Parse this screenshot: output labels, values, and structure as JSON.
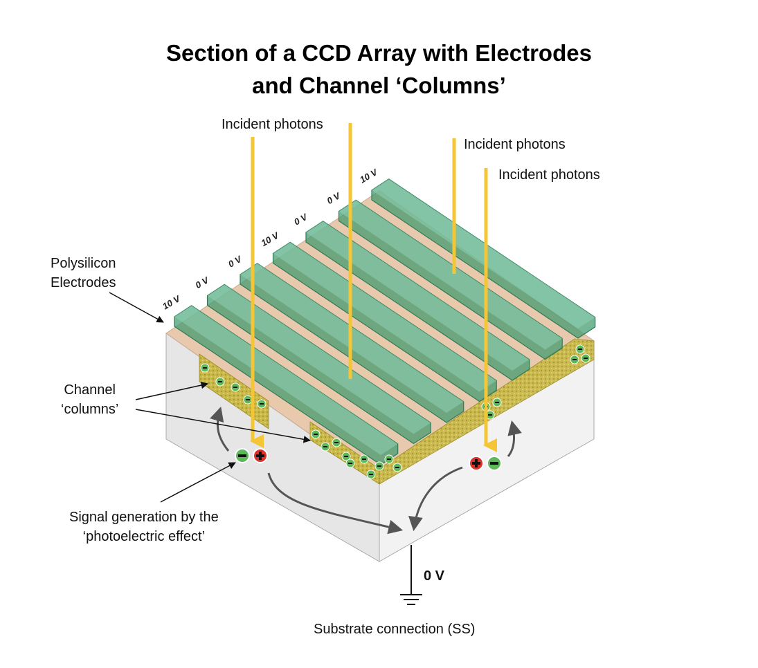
{
  "title_line1": "Section of a CCD Array with Electrodes",
  "title_line2": "and Channel ‘Columns’",
  "photon_labels": [
    "Incident photons",
    "Incident photons",
    "Incident photons"
  ],
  "electrode_label": [
    "Polysilicon",
    "Electrodes"
  ],
  "channel_label": [
    "Channel",
    "‘columns’"
  ],
  "signal_label": [
    "Signal generation by the",
    "‘photoelectric effect’"
  ],
  "electrode_voltages": [
    "10 V",
    "0 V",
    "0 V",
    "10 V",
    "0 V",
    "0 V",
    "10 V"
  ],
  "ground_voltage": "0 V",
  "substrate_label": "Substrate connection (SS)",
  "colors": {
    "photon_arrow": "#f4c534",
    "electrode": "#3f9a6e",
    "substrate": "#eeeeee",
    "channel": "#c8b84a",
    "positive_charge": "#d9342b",
    "negative_charge": "#5db85a"
  }
}
